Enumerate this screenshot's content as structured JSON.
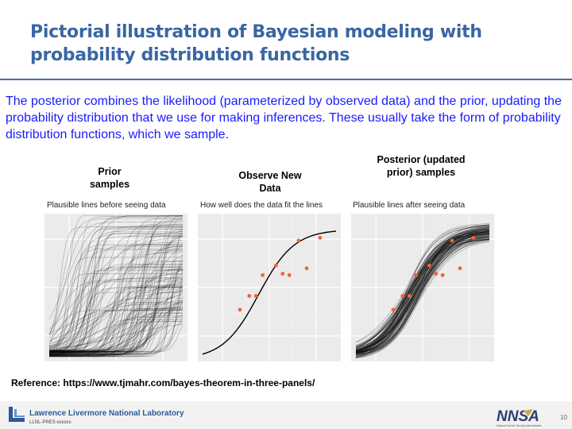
{
  "slide": {
    "title": "Pictorial illustration of Bayesian modeling with probability distribution functions",
    "intro": "The posterior combines the likelihood (parameterized by observed data) and the prior, updating the probability distribution that we use for making inferences. These usually take the form of probability distribution functions, which we sample.",
    "reference": "Reference: https://www.tjmahr.com/bayes-theorem-in-three-panels/",
    "page_number": "10"
  },
  "panels": [
    {
      "caption": "Prior samples",
      "title": "Plausible lines before seeing data"
    },
    {
      "caption": "Observe New Data",
      "title": "How well does the data fit the lines"
    },
    {
      "caption": "Posterior (updated prior) samples",
      "title": "Plausible lines after seeing data"
    }
  ],
  "footer": {
    "lab_name": "Lawrence Livermore National Laboratory",
    "release": "LLNL-PRES-xxxxxx",
    "agency": "NNSA",
    "agency_full": "National Nuclear Security Administration"
  },
  "colors": {
    "title": "#3a66a3",
    "intro_text": "#1a1aff",
    "data_points": "#f4603a",
    "panel_bg": "#ebebeb",
    "lines": "#000000"
  },
  "chart_data": [
    {
      "type": "line",
      "title": "Plausible lines before seeing data",
      "description_series": "prior sample curves",
      "grid": true
    },
    {
      "type": "scatter",
      "title": "How well does the data fit the lines",
      "grid": true,
      "points": [
        [
          0.28,
          0.34
        ],
        [
          0.35,
          0.44
        ],
        [
          0.4,
          0.44
        ],
        [
          0.45,
          0.59
        ],
        [
          0.55,
          0.66
        ],
        [
          0.6,
          0.6
        ],
        [
          0.65,
          0.59
        ],
        [
          0.72,
          0.84
        ],
        [
          0.78,
          0.64
        ],
        [
          0.88,
          0.86
        ]
      ]
    },
    {
      "type": "scatter",
      "title": "Plausible lines after seeing data",
      "grid": true,
      "points": [
        [
          0.28,
          0.34
        ],
        [
          0.35,
          0.44
        ],
        [
          0.4,
          0.44
        ],
        [
          0.45,
          0.59
        ],
        [
          0.55,
          0.66
        ],
        [
          0.6,
          0.6
        ],
        [
          0.65,
          0.59
        ],
        [
          0.72,
          0.84
        ],
        [
          0.78,
          0.64
        ],
        [
          0.88,
          0.86
        ]
      ]
    }
  ]
}
